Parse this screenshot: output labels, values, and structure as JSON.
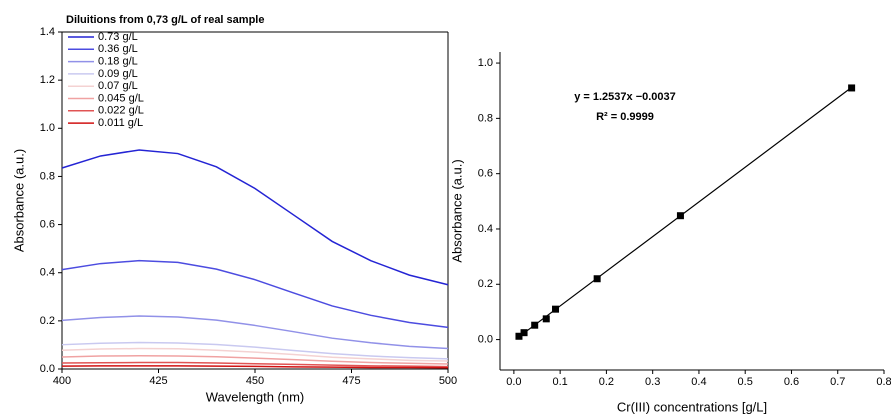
{
  "chart_data": [
    {
      "type": "line",
      "title": "Diluitions from 0,73 g/L of real sample",
      "x_label": "Wavelength (nm)",
      "y_label": "Absorbance (a.u.)",
      "x": [
        400,
        410,
        420,
        430,
        440,
        450,
        460,
        470,
        480,
        490,
        500
      ],
      "series": [
        {
          "name": "0.73 g/L",
          "color": "#2424d4",
          "values": [
            0.835,
            0.885,
            0.91,
            0.895,
            0.84,
            0.75,
            0.64,
            0.53,
            0.45,
            0.39,
            0.35
          ]
        },
        {
          "name": "0.36 g/L",
          "color": "#4c4ce0",
          "values": [
            0.413,
            0.438,
            0.45,
            0.443,
            0.415,
            0.371,
            0.316,
            0.262,
            0.223,
            0.193,
            0.173
          ]
        },
        {
          "name": "0.18 g/L",
          "color": "#9191e8",
          "values": [
            0.202,
            0.214,
            0.22,
            0.216,
            0.203,
            0.181,
            0.155,
            0.128,
            0.109,
            0.094,
            0.085
          ]
        },
        {
          "name": "0.09 g/L",
          "color": "#c9c9f0",
          "values": [
            0.101,
            0.107,
            0.11,
            0.108,
            0.102,
            0.091,
            0.077,
            0.064,
            0.054,
            0.047,
            0.042
          ]
        },
        {
          "name": "0.07 g/L",
          "color": "#f4d2d2",
          "values": [
            0.078,
            0.083,
            0.085,
            0.084,
            0.078,
            0.07,
            0.06,
            0.049,
            0.042,
            0.036,
            0.033
          ]
        },
        {
          "name": "0.045 g/L",
          "color": "#f0a2a2",
          "values": [
            0.05,
            0.054,
            0.055,
            0.054,
            0.051,
            0.045,
            0.039,
            0.032,
            0.027,
            0.024,
            0.021
          ]
        },
        {
          "name": "0.022 g/L",
          "color": "#e05454",
          "values": [
            0.025,
            0.026,
            0.027,
            0.027,
            0.025,
            0.022,
            0.019,
            0.016,
            0.013,
            0.012,
            0.01
          ]
        },
        {
          "name": "0.011 g/L",
          "color": "#d01212",
          "values": [
            0.012,
            0.013,
            0.013,
            0.013,
            0.012,
            0.011,
            0.009,
            0.008,
            0.006,
            0.006,
            0.005
          ]
        }
      ],
      "xlim": [
        400,
        500
      ],
      "xticks": [
        400,
        425,
        450,
        475,
        500
      ],
      "ylim": [
        0,
        1.4
      ],
      "yticks": [
        {
          "value": 0,
          "label": "0.0"
        },
        0.2,
        0.4,
        0.6,
        0.8,
        {
          "value": 1,
          "label": "1.0"
        },
        1.2,
        1.4
      ],
      "legend": "upper left"
    },
    {
      "type": "scatter",
      "x_label": "Cr(III) concentrations [g/L]",
      "y_label": "Absorbance (a.u.)",
      "annotations": [
        "y = 1.2537x −0.0037",
        "R² = 0.9999"
      ],
      "x": [
        0.011,
        0.022,
        0.045,
        0.07,
        0.09,
        0.18,
        0.36,
        0.73
      ],
      "values": [
        0.012,
        0.025,
        0.052,
        0.075,
        0.11,
        0.22,
        0.448,
        0.91
      ],
      "color": "#000000",
      "fit": {
        "x": [
          0.011,
          0.73
        ],
        "y": [
          0.01,
          0.912
        ]
      },
      "xlim": [
        -0.03,
        0.8
      ],
      "xticks": [
        {
          "value": 0,
          "label": "0.0"
        },
        0.1,
        0.2,
        0.3,
        0.4,
        0.5,
        0.6,
        0.7,
        0.8
      ],
      "ylim": [
        -0.11,
        1.04
      ],
      "yticks": [
        {
          "value": 0,
          "label": "0.0"
        },
        0.2,
        0.4,
        0.6,
        0.8,
        {
          "value": 1,
          "label": "1.0"
        }
      ]
    }
  ]
}
